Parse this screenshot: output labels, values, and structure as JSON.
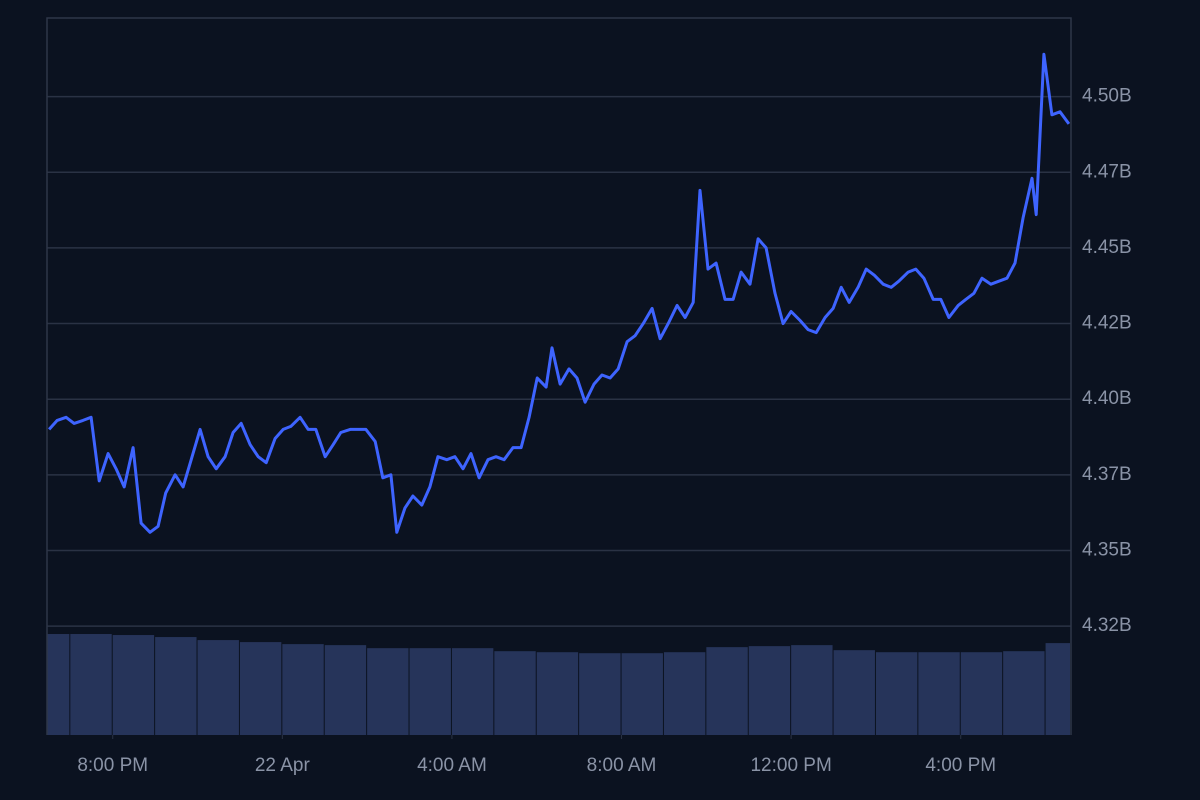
{
  "chart_data": {
    "type": "line",
    "color": "#3e64ff",
    "grid": true,
    "xlim": [
      18.45,
      42.6
    ],
    "xticks": [
      {
        "value": 20,
        "label": "8:00 PM"
      },
      {
        "value": 24,
        "label": "22 Apr"
      },
      {
        "value": 28,
        "label": "4:00 AM"
      },
      {
        "value": 32,
        "label": "8:00 AM"
      },
      {
        "value": 36,
        "label": "12:00 PM"
      },
      {
        "value": 40,
        "label": "4:00 PM"
      }
    ],
    "ylim": [
      4.289,
      4.526
    ],
    "yticks": [
      {
        "value": 4.5,
        "label": "4.50B"
      },
      {
        "value": 4.475,
        "label": "4.47B"
      },
      {
        "value": 4.45,
        "label": "4.45B"
      },
      {
        "value": 4.425,
        "label": "4.42B"
      },
      {
        "value": 4.4,
        "label": "4.40B"
      },
      {
        "value": 4.375,
        "label": "4.37B"
      },
      {
        "value": 4.35,
        "label": "4.35B"
      },
      {
        "value": 4.325,
        "label": "4.32B"
      }
    ],
    "x": [
      18.5,
      18.69,
      18.9,
      19.09,
      19.3,
      19.49,
      19.68,
      19.89,
      20.08,
      20.27,
      20.48,
      20.67,
      20.88,
      21.07,
      21.25,
      21.47,
      21.66,
      21.85,
      22.06,
      22.25,
      22.44,
      22.65,
      22.84,
      23.03,
      23.24,
      23.43,
      23.62,
      23.83,
      24.02,
      24.2,
      24.42,
      24.61,
      24.79,
      25.01,
      25.2,
      25.38,
      25.6,
      25.78,
      25.97,
      26.19,
      26.37,
      26.56,
      26.7,
      26.89,
      27.08,
      27.29,
      27.48,
      27.67,
      27.88,
      28.07,
      28.26,
      28.45,
      28.64,
      28.85,
      29.04,
      29.23,
      29.44,
      29.63,
      29.82,
      30.01,
      30.22,
      30.36,
      30.55,
      30.76,
      30.95,
      31.14,
      31.35,
      31.54,
      31.73,
      31.92,
      32.13,
      32.32,
      32.51,
      32.72,
      32.91,
      33.1,
      33.31,
      33.5,
      33.69,
      33.85,
      34.04,
      34.23,
      34.44,
      34.63,
      34.82,
      35.03,
      35.22,
      35.41,
      35.62,
      35.81,
      36.0,
      36.21,
      36.4,
      36.59,
      36.8,
      36.99,
      37.18,
      37.37,
      37.58,
      37.77,
      37.96,
      38.17,
      38.36,
      38.54,
      38.76,
      38.94,
      39.13,
      39.35,
      39.53,
      39.72,
      39.94,
      40.12,
      40.31,
      40.5,
      40.71,
      40.9,
      41.09,
      41.28,
      41.47,
      41.68,
      41.78,
      41.96,
      42.15,
      42.34,
      42.55
    ],
    "values": [
      4.39,
      4.393,
      4.394,
      4.392,
      4.393,
      4.394,
      4.373,
      4.382,
      4.377,
      4.371,
      4.384,
      4.359,
      4.356,
      4.358,
      4.369,
      4.375,
      4.371,
      4.38,
      4.39,
      4.381,
      4.377,
      4.381,
      4.389,
      4.392,
      4.385,
      4.381,
      4.379,
      4.387,
      4.39,
      4.391,
      4.394,
      4.39,
      4.39,
      4.381,
      4.385,
      4.389,
      4.39,
      4.39,
      4.39,
      4.386,
      4.374,
      4.375,
      4.356,
      4.364,
      4.368,
      4.365,
      4.371,
      4.381,
      4.38,
      4.381,
      4.377,
      4.382,
      4.374,
      4.38,
      4.381,
      4.38,
      4.384,
      4.384,
      4.394,
      4.407,
      4.404,
      4.417,
      4.405,
      4.41,
      4.407,
      4.399,
      4.405,
      4.408,
      4.407,
      4.41,
      4.419,
      4.421,
      4.425,
      4.43,
      4.42,
      4.425,
      4.431,
      4.427,
      4.432,
      4.469,
      4.443,
      4.445,
      4.433,
      4.433,
      4.442,
      4.438,
      4.453,
      4.45,
      4.435,
      4.425,
      4.429,
      4.426,
      4.423,
      4.422,
      4.427,
      4.43,
      4.437,
      4.432,
      4.437,
      4.443,
      4.441,
      4.438,
      4.437,
      4.439,
      4.442,
      4.443,
      4.44,
      4.433,
      4.433,
      4.427,
      4.431,
      4.433,
      4.435,
      4.44,
      4.438,
      4.439,
      4.44,
      4.445,
      4.46,
      4.473,
      4.461,
      4.514,
      4.494,
      4.495,
      4.491
    ],
    "volume": {
      "color": "#26345a",
      "ylim": [
        0,
        710
      ],
      "x": [
        18.5,
        19.5,
        20.5,
        21.5,
        22.5,
        23.5,
        24.5,
        25.5,
        26.5,
        27.5,
        28.5,
        29.5,
        30.5,
        31.5,
        32.5,
        33.5,
        34.5,
        35.5,
        36.5,
        37.5,
        38.5,
        39.5,
        40.5,
        41.5,
        42.5
      ],
      "values": [
        100,
        100,
        99,
        97,
        94,
        92,
        90,
        89,
        86,
        86,
        86,
        83,
        82,
        81,
        81,
        82,
        87,
        88,
        89,
        84,
        82,
        82,
        82,
        83,
        91
      ]
    }
  }
}
